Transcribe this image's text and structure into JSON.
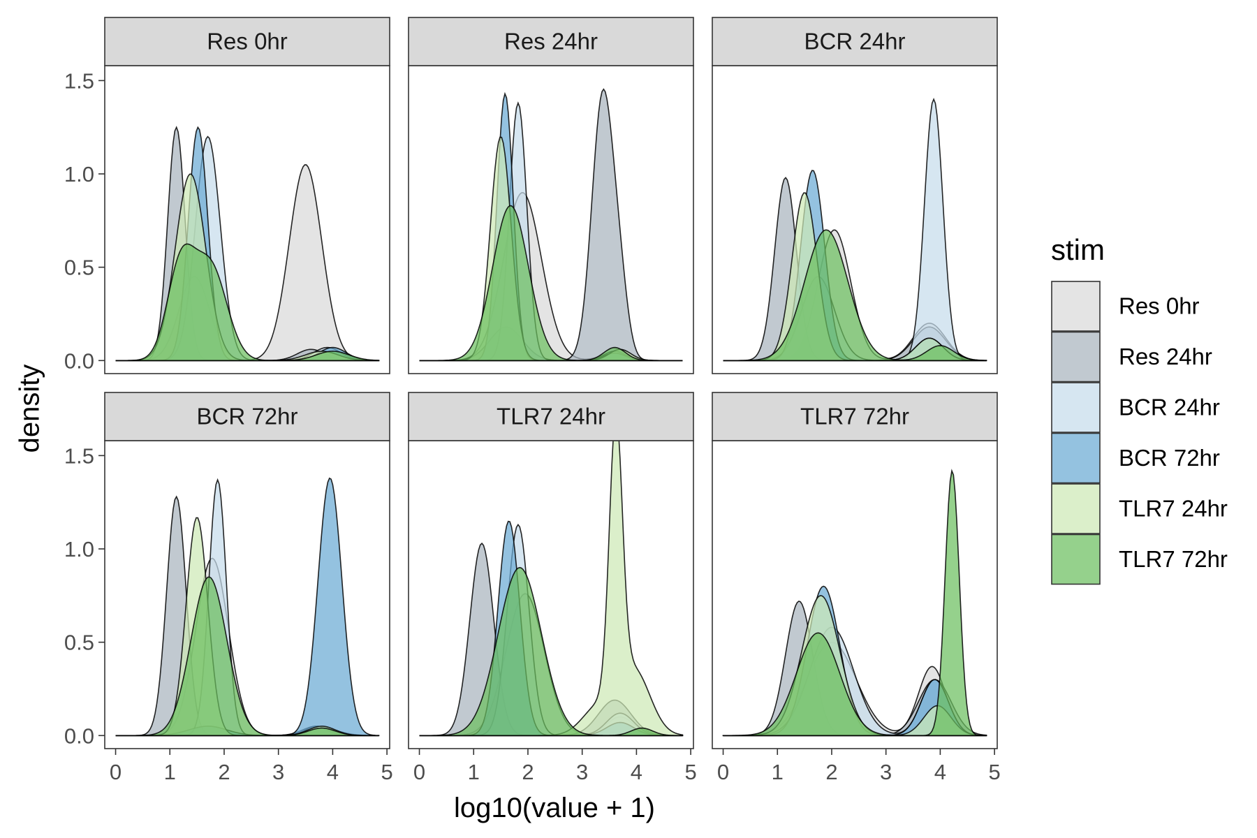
{
  "chart_data": {
    "type": "area",
    "subtype": "faceted density",
    "xlabel": "log10(value + 1)",
    "ylabel": "density",
    "xlim": [
      -0.2,
      5.05
    ],
    "ylim": [
      -0.07,
      1.58
    ],
    "x_ticks": [
      0,
      1,
      2,
      3,
      4,
      5
    ],
    "y_ticks": [
      0.0,
      0.5,
      1.0,
      1.5
    ],
    "y_tick_labels": [
      "0.0",
      "0.5",
      "1.0",
      "1.5"
    ],
    "legend": {
      "title": "stim",
      "position": "right",
      "entries": [
        "Res 0hr",
        "Res 24hr",
        "BCR 24hr",
        "BCR 72hr",
        "TLR7 24hr",
        "TLR7 72hr"
      ]
    },
    "series_colors": {
      "Res 0hr": "#d9d9d9",
      "Res 24hr": "#a9b4be",
      "BCR 24hr": "#c6dcec",
      "BCR 72hr": "#6baad4",
      "TLR7 24hr": "#cde9b5",
      "TLR7 72hr": "#6cbf5f"
    },
    "fill_alpha": 0.72,
    "x_support": [
      0.0,
      4.85
    ],
    "facets": [
      {
        "title": "Res 0hr",
        "series": [
          {
            "name": "Res 0hr",
            "components": [
              {
                "mu": 1.45,
                "sd": 0.28,
                "h": 0.45
              },
              {
                "mu": 3.5,
                "sd": 0.3,
                "h": 1.05
              }
            ]
          },
          {
            "name": "Res 24hr",
            "components": [
              {
                "mu": 1.12,
                "sd": 0.16,
                "h": 1.25
              },
              {
                "mu": 3.6,
                "sd": 0.25,
                "h": 0.06
              }
            ]
          },
          {
            "name": "BCR 24hr",
            "components": [
              {
                "mu": 1.7,
                "sd": 0.23,
                "h": 1.2
              },
              {
                "mu": 3.9,
                "sd": 0.25,
                "h": 0.07
              }
            ]
          },
          {
            "name": "BCR 72hr",
            "components": [
              {
                "mu": 1.52,
                "sd": 0.18,
                "h": 1.25
              },
              {
                "mu": 4.0,
                "sd": 0.25,
                "h": 0.07
              }
            ]
          },
          {
            "name": "TLR7 24hr",
            "components": [
              {
                "mu": 1.38,
                "sd": 0.28,
                "h": 1.0
              },
              {
                "mu": 3.8,
                "sd": 0.3,
                "h": 0.05
              }
            ]
          },
          {
            "name": "TLR7 72hr",
            "components": [
              {
                "mu": 1.2,
                "sd": 0.25,
                "h": 0.5
              },
              {
                "mu": 1.75,
                "sd": 0.3,
                "h": 0.5
              },
              {
                "mu": 4.0,
                "sd": 0.3,
                "h": 0.05
              }
            ]
          }
        ]
      },
      {
        "title": "Res 24hr",
        "series": [
          {
            "name": "Res 0hr",
            "components": [
              {
                "mu": 1.9,
                "sd": 0.35,
                "h": 0.9
              },
              {
                "mu": 3.6,
                "sd": 0.25,
                "h": 0.04
              }
            ]
          },
          {
            "name": "Res 24hr",
            "components": [
              {
                "mu": 1.6,
                "sd": 0.3,
                "h": 0.18
              },
              {
                "mu": 3.38,
                "sd": 0.2,
                "h": 1.42
              },
              {
                "mu": 3.7,
                "sd": 0.15,
                "h": 0.3
              }
            ]
          },
          {
            "name": "BCR 24hr",
            "components": [
              {
                "mu": 1.82,
                "sd": 0.16,
                "h": 1.38
              },
              {
                "mu": 3.6,
                "sd": 0.2,
                "h": 0.05
              }
            ]
          },
          {
            "name": "BCR 72hr",
            "components": [
              {
                "mu": 1.58,
                "sd": 0.15,
                "h": 1.43
              },
              {
                "mu": 3.6,
                "sd": 0.2,
                "h": 0.04
              }
            ]
          },
          {
            "name": "TLR7 24hr",
            "components": [
              {
                "mu": 1.5,
                "sd": 0.19,
                "h": 1.2
              },
              {
                "mu": 3.7,
                "sd": 0.2,
                "h": 0.06
              }
            ]
          },
          {
            "name": "TLR7 72hr",
            "components": [
              {
                "mu": 1.68,
                "sd": 0.33,
                "h": 0.83
              },
              {
                "mu": 3.6,
                "sd": 0.2,
                "h": 0.07
              }
            ]
          }
        ]
      },
      {
        "title": "BCR 24hr",
        "series": [
          {
            "name": "Res 0hr",
            "components": [
              {
                "mu": 2.05,
                "sd": 0.3,
                "h": 0.7
              },
              {
                "mu": 3.8,
                "sd": 0.3,
                "h": 0.2
              }
            ]
          },
          {
            "name": "Res 24hr",
            "components": [
              {
                "mu": 1.15,
                "sd": 0.2,
                "h": 0.98
              },
              {
                "mu": 3.8,
                "sd": 0.3,
                "h": 0.18
              }
            ]
          },
          {
            "name": "BCR 24hr",
            "components": [
              {
                "mu": 1.75,
                "sd": 0.3,
                "h": 0.45
              },
              {
                "mu": 3.88,
                "sd": 0.17,
                "h": 1.4
              }
            ]
          },
          {
            "name": "BCR 72hr",
            "components": [
              {
                "mu": 1.65,
                "sd": 0.22,
                "h": 1.02
              },
              {
                "mu": 3.8,
                "sd": 0.25,
                "h": 0.12
              }
            ]
          },
          {
            "name": "TLR7 24hr",
            "components": [
              {
                "mu": 1.5,
                "sd": 0.23,
                "h": 0.9
              },
              {
                "mu": 3.8,
                "sd": 0.25,
                "h": 0.12
              }
            ]
          },
          {
            "name": "TLR7 72hr",
            "components": [
              {
                "mu": 1.9,
                "sd": 0.4,
                "h": 0.7
              },
              {
                "mu": 4.0,
                "sd": 0.25,
                "h": 0.08
              }
            ]
          }
        ]
      },
      {
        "title": "BCR 72hr",
        "series": [
          {
            "name": "Res 0hr",
            "components": [
              {
                "mu": 1.78,
                "sd": 0.3,
                "h": 0.95
              },
              {
                "mu": 3.8,
                "sd": 0.3,
                "h": 0.04
              }
            ]
          },
          {
            "name": "Res 24hr",
            "components": [
              {
                "mu": 1.12,
                "sd": 0.18,
                "h": 1.28
              },
              {
                "mu": 3.7,
                "sd": 0.25,
                "h": 0.05
              }
            ]
          },
          {
            "name": "BCR 24hr",
            "components": [
              {
                "mu": 1.88,
                "sd": 0.16,
                "h": 1.37
              },
              {
                "mu": 3.7,
                "sd": 0.2,
                "h": 0.05
              }
            ]
          },
          {
            "name": "BCR 72hr",
            "components": [
              {
                "mu": 1.7,
                "sd": 0.35,
                "h": 0.05
              },
              {
                "mu": 3.95,
                "sd": 0.22,
                "h": 1.38
              }
            ]
          },
          {
            "name": "TLR7 24hr",
            "components": [
              {
                "mu": 1.5,
                "sd": 0.2,
                "h": 1.17
              },
              {
                "mu": 3.8,
                "sd": 0.25,
                "h": 0.05
              }
            ]
          },
          {
            "name": "TLR7 72hr",
            "components": [
              {
                "mu": 1.72,
                "sd": 0.33,
                "h": 0.85
              },
              {
                "mu": 3.8,
                "sd": 0.25,
                "h": 0.04
              }
            ]
          }
        ]
      },
      {
        "title": "TLR7 24hr",
        "series": [
          {
            "name": "Res 0hr",
            "components": [
              {
                "mu": 1.95,
                "sd": 0.35,
                "h": 0.76
              },
              {
                "mu": 3.7,
                "sd": 0.25,
                "h": 0.1
              }
            ]
          },
          {
            "name": "Res 24hr",
            "components": [
              {
                "mu": 1.15,
                "sd": 0.22,
                "h": 1.03
              },
              {
                "mu": 3.6,
                "sd": 0.3,
                "h": 0.19
              }
            ]
          },
          {
            "name": "BCR 24hr",
            "components": [
              {
                "mu": 1.82,
                "sd": 0.2,
                "h": 1.13
              },
              {
                "mu": 3.7,
                "sd": 0.25,
                "h": 0.12
              }
            ]
          },
          {
            "name": "BCR 72hr",
            "components": [
              {
                "mu": 1.65,
                "sd": 0.2,
                "h": 1.15
              },
              {
                "mu": 3.7,
                "sd": 0.25,
                "h": 0.07
              }
            ]
          },
          {
            "name": "TLR7 24hr",
            "components": [
              {
                "mu": 3.3,
                "sd": 0.3,
                "h": 0.15
              },
              {
                "mu": 3.62,
                "sd": 0.12,
                "h": 1.45
              },
              {
                "mu": 3.95,
                "sd": 0.3,
                "h": 0.35
              }
            ]
          },
          {
            "name": "TLR7 72hr",
            "components": [
              {
                "mu": 1.85,
                "sd": 0.4,
                "h": 0.9
              },
              {
                "mu": 4.1,
                "sd": 0.2,
                "h": 0.04
              }
            ]
          }
        ]
      },
      {
        "title": "TLR7 72hr",
        "series": [
          {
            "name": "Res 0hr",
            "components": [
              {
                "mu": 2.0,
                "sd": 0.45,
                "h": 0.5
              },
              {
                "mu": 3.85,
                "sd": 0.25,
                "h": 0.37
              }
            ]
          },
          {
            "name": "Res 24hr",
            "components": [
              {
                "mu": 1.4,
                "sd": 0.25,
                "h": 0.72
              },
              {
                "mu": 3.9,
                "sd": 0.3,
                "h": 0.3
              }
            ]
          },
          {
            "name": "BCR 24hr",
            "components": [
              {
                "mu": 2.0,
                "sd": 0.4,
                "h": 0.58
              },
              {
                "mu": 3.9,
                "sd": 0.25,
                "h": 0.3
              }
            ]
          },
          {
            "name": "BCR 72hr",
            "components": [
              {
                "mu": 1.85,
                "sd": 0.3,
                "h": 0.8
              },
              {
                "mu": 3.9,
                "sd": 0.25,
                "h": 0.3
              }
            ]
          },
          {
            "name": "TLR7 24hr",
            "components": [
              {
                "mu": 1.8,
                "sd": 0.35,
                "h": 0.75
              },
              {
                "mu": 3.95,
                "sd": 0.25,
                "h": 0.16
              }
            ]
          },
          {
            "name": "TLR7 72hr",
            "components": [
              {
                "mu": 1.75,
                "sd": 0.4,
                "h": 0.55
              },
              {
                "mu": 4.22,
                "sd": 0.13,
                "h": 1.42
              }
            ]
          }
        ]
      }
    ]
  }
}
